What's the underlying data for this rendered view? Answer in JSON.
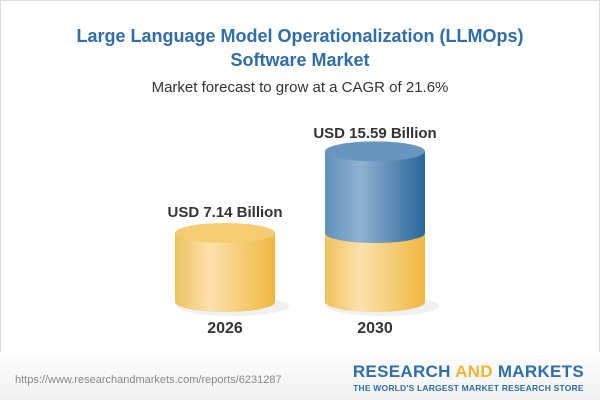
{
  "title": "Large Language Model Operationalization (LLMOps) Software Market",
  "subtitle": "Market forecast to grow at a CAGR of 21.6%",
  "chart_data": {
    "type": "bar",
    "style": "cylinder",
    "categories": [
      "2026",
      "2030"
    ],
    "values": [
      7.14,
      15.59
    ],
    "data_labels": [
      "USD 7.14 Billion",
      "USD 15.59 Billion"
    ],
    "cagr": "21.6%",
    "colors": {
      "base": "#f2c25a",
      "growth": "#3a78ad"
    }
  },
  "footer": {
    "url": "https://www.researchandmarkets.com/reports/6231287",
    "logo_part1": "RESEARCH ",
    "logo_part2": "AND",
    "logo_part3": " MARKETS",
    "logo_tagline": "THE WORLD'S LARGEST MARKET RESEARCH STORE"
  }
}
